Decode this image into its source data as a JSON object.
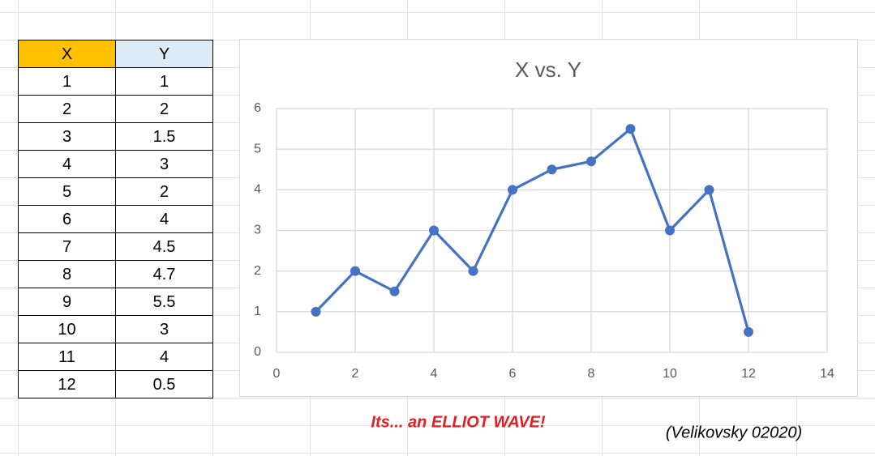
{
  "table": {
    "headers": [
      "X",
      "Y"
    ]
  },
  "chart_data": {
    "type": "line",
    "title": "X vs. Y",
    "x": [
      1,
      2,
      3,
      4,
      5,
      6,
      7,
      8,
      9,
      10,
      11,
      12
    ],
    "series": [
      {
        "name": "Y",
        "color": "#4472c4",
        "values": [
          1,
          2,
          1.5,
          3,
          2,
          4,
          4.5,
          4.7,
          5.5,
          3,
          4,
          0.5
        ]
      }
    ],
    "xlim": [
      0,
      14
    ],
    "xticks": [
      0,
      2,
      4,
      6,
      8,
      10,
      12,
      14
    ],
    "ylim": [
      0,
      6
    ],
    "yticks": [
      0,
      1,
      2,
      3,
      4,
      5,
      6
    ],
    "grid": true,
    "annotations": [
      "Its... an ELLIOT WAVE!",
      "(Velikovsky 02020)"
    ]
  }
}
